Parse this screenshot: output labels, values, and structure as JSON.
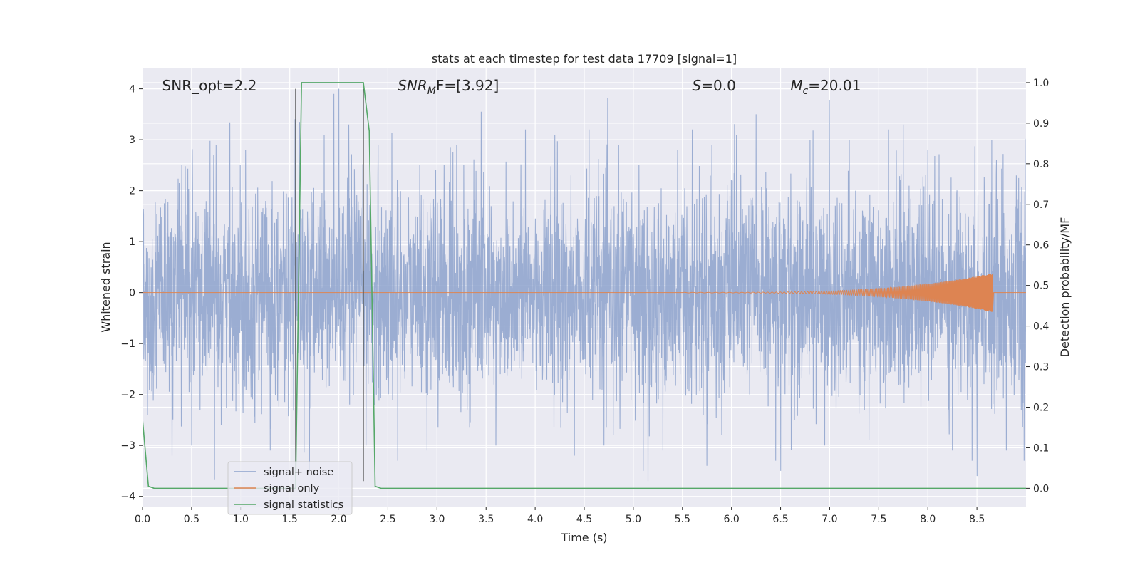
{
  "chart_data": {
    "type": "line",
    "title": "stats at each timestep for test data 17709 [signal=1]",
    "xlabel": "Time (s)",
    "ylabel": "Whitened strain",
    "y2label": "Detection probability/MF",
    "xlim": [
      0.0,
      9.0
    ],
    "ylim": [
      -4.2,
      4.4
    ],
    "y2lim": [
      -0.045,
      1.035
    ],
    "grid": true,
    "legend_position": "lower-left",
    "x_ticks": [
      "0.0",
      "0.5",
      "1.0",
      "1.5",
      "2.0",
      "2.5",
      "3.0",
      "3.5",
      "4.0",
      "4.5",
      "5.0",
      "5.5",
      "6.0",
      "6.5",
      "7.0",
      "7.5",
      "8.0",
      "8.5"
    ],
    "y_ticks": [
      "4",
      "3",
      "2",
      "1",
      "0",
      "−1",
      "−2",
      "−3",
      "−4"
    ],
    "y2_ticks": [
      "1.0",
      "0.9",
      "0.8",
      "0.7",
      "0.6",
      "0.5",
      "0.4",
      "0.3",
      "0.2",
      "0.1",
      "0.0"
    ],
    "annotations": [
      {
        "id": "snr-opt",
        "text": "SNR_opt=2.2",
        "x": 0.2,
        "y": 4.05
      },
      {
        "id": "snr-mf",
        "text": "SNR_MF=[3.92]",
        "prefix": "SNR",
        "sub": "M",
        "suffix": "F=[3.92]",
        "x": 2.6,
        "y": 4.05
      },
      {
        "id": "s-stat",
        "text": "S=0.0",
        "prefix": "S",
        "suffix": "=0.0",
        "x": 5.6,
        "y": 4.05
      },
      {
        "id": "chirp-mass",
        "text": "M_c=20.01",
        "prefix": "M",
        "sub": "c",
        "suffix": "=20.01",
        "x": 6.6,
        "y": 4.05
      }
    ],
    "vlines": [
      1.56,
      2.25
    ],
    "vline_range": [
      -3.7,
      4.0
    ],
    "series": [
      {
        "name": "signal+ noise",
        "color": "#8da2cc",
        "noise_sigma": 1.0,
        "samples": 4096,
        "spikes": [
          [
            0.05,
            -2.4
          ],
          [
            0.3,
            -3.2
          ],
          [
            0.4,
            2.5
          ],
          [
            0.5,
            -3.0
          ],
          [
            0.75,
            2.9
          ],
          [
            1.05,
            2.8
          ],
          [
            1.3,
            -3.1
          ],
          [
            1.6,
            3.35
          ],
          [
            1.7,
            -3.5
          ],
          [
            1.85,
            3.1
          ],
          [
            1.95,
            3.9
          ],
          [
            2.0,
            4.0
          ],
          [
            2.1,
            3.3
          ],
          [
            2.4,
            2.9
          ],
          [
            2.6,
            -3.3
          ],
          [
            2.9,
            -3.1
          ],
          [
            3.2,
            2.9
          ],
          [
            3.45,
            3.55
          ],
          [
            3.6,
            -3.0
          ],
          [
            3.9,
            3.2
          ],
          [
            4.2,
            3.1
          ],
          [
            4.4,
            -3.2
          ],
          [
            4.55,
            3.2
          ],
          [
            4.7,
            -3.0
          ],
          [
            5.1,
            -3.5
          ],
          [
            5.15,
            -3.7
          ],
          [
            5.3,
            -3.1
          ],
          [
            5.45,
            2.8
          ],
          [
            5.6,
            3.2
          ],
          [
            5.8,
            2.9
          ],
          [
            5.9,
            -2.8
          ],
          [
            6.05,
            3.1
          ],
          [
            6.25,
            3.5
          ],
          [
            6.45,
            -3.3
          ],
          [
            6.5,
            -3.5
          ],
          [
            6.8,
            3.0
          ],
          [
            6.95,
            -3.0
          ],
          [
            7.2,
            3.0
          ],
          [
            7.4,
            -2.9
          ],
          [
            7.6,
            3.2
          ],
          [
            7.75,
            3.3
          ],
          [
            8.0,
            2.8
          ],
          [
            8.25,
            -3.1
          ],
          [
            8.45,
            -3.3
          ],
          [
            8.5,
            -3.6
          ],
          [
            8.65,
            3.0
          ],
          [
            8.7,
            2.6
          ],
          [
            8.8,
            -3.1
          ],
          [
            8.9,
            2.3
          ],
          [
            8.98,
            -3.3
          ]
        ]
      },
      {
        "name": "signal only",
        "color": "#dd8452",
        "chirp": {
          "t_start": 5.5,
          "t_merger": 8.66,
          "peak_amp": 0.38,
          "f0": 12,
          "f1": 55
        }
      },
      {
        "name": "signal statistics",
        "color": "#55a868",
        "axis": "right",
        "x": [
          0.0,
          0.06,
          0.12,
          1.5,
          1.56,
          1.62,
          2.25,
          2.31,
          2.37,
          2.43,
          9.0
        ],
        "y": [
          0.17,
          0.005,
          0.0,
          0.0,
          0.0,
          1.0,
          1.0,
          0.88,
          0.005,
          0.0,
          0.0
        ]
      }
    ]
  }
}
